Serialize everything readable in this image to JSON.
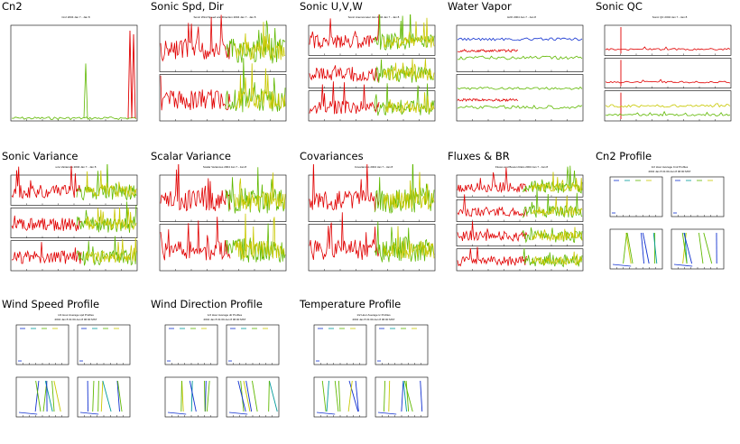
{
  "colors": {
    "red": "#e00000",
    "green": "#5fb800",
    "yellow": "#c8c800",
    "orange": "#f08000",
    "blue": "#1030d0",
    "teal": "#009a9a",
    "grid": "#000000"
  },
  "plots": [
    {
      "id": "cn2",
      "title": "Cn2",
      "kind": "timeseries-single",
      "header": "Cn2 2004 Jan 7 - Jan 8",
      "icon": "cn2-plot-icon"
    },
    {
      "id": "sonic-spd-dir",
      "title": "Sonic Spd, Dir",
      "kind": "timeseries-double",
      "header": "Sonic Wind Speed and Direction 2004 Jan 7 - Jan 8",
      "icon": "sonic-spd-dir-plot-icon"
    },
    {
      "id": "sonic-uvw",
      "title": "Sonic U,V,W",
      "kind": "timeseries-triple",
      "header": "Sonic Anemometer Jan 2004 Jan 7 - Jan 8",
      "icon": "sonic-uvw-plot-icon"
    },
    {
      "id": "water-vapor",
      "title": "Water Vapor",
      "kind": "timeseries-double",
      "header": "H2O 2004 Jan 7 - Jan 8",
      "icon": "water-vapor-plot-icon"
    },
    {
      "id": "sonic-qc",
      "title": "Sonic QC",
      "kind": "timeseries-triple",
      "header": "Sonic QC 2004 Jan 7 - Jan 8",
      "icon": "sonic-qc-plot-icon"
    },
    {
      "id": "sonic-variance",
      "title": "Sonic Variance",
      "kind": "timeseries-triple",
      "header": "uvw Variances 2004 Jan 7 - Jan 8",
      "icon": "sonic-variance-plot-icon"
    },
    {
      "id": "scalar-variance",
      "title": "Scalar Variance",
      "kind": "timeseries-double",
      "header": "Scalar Variances 2004 Jan 7 - Jan 8",
      "icon": "scalar-variance-plot-icon"
    },
    {
      "id": "covariances",
      "title": "Covariances",
      "kind": "timeseries-double",
      "header": "Covariances 2004 Jan 7 - Jan 8",
      "icon": "covariances-plot-icon"
    },
    {
      "id": "fluxes-br",
      "title": "Fluxes & BR",
      "kind": "timeseries-quad",
      "header": "Fluxes and Bowen Ratio 2004 Jan 7 - Jan 8",
      "icon": "fluxes-br-plot-icon"
    },
    {
      "id": "cn2-profile",
      "title": "Cn2 Profile",
      "kind": "profile",
      "header": "1/2 Hour Average Cn2 Profiles",
      "subheader": "2004 Jan 8 01:00-Jan 8 06:00 MST",
      "icon": "cn2-profile-plot-icon"
    },
    {
      "id": "wind-speed-profile",
      "title": "Wind Speed Profile",
      "kind": "profile",
      "header": "1/2 Hour Average spd Profiles",
      "subheader": "2004 Jan 8 01:00-Jan 8 06:00 MST",
      "icon": "wind-speed-profile-plot-icon"
    },
    {
      "id": "wind-direction-profile",
      "title": "Wind Direction Profile",
      "kind": "profile",
      "header": "1/2 Hour Average dir Profiles",
      "subheader": "2004 Jan 8 01:00-Jan 8 06:00 MST",
      "icon": "wind-direction-profile-plot-icon"
    },
    {
      "id": "temperature-profile",
      "title": "Temperature Profile",
      "kind": "profile",
      "header": "1/2 Hour Average tc Profiles",
      "subheader": "2004 Jan 8 01:00-Jan 8 06:00 MST",
      "icon": "temperature-profile-plot-icon"
    }
  ],
  "chart_data": [
    {
      "type": "line",
      "title": "Cn2",
      "x": "time 2004 Jan 7 - Jan 8",
      "series": []
    },
    {
      "type": "line",
      "title": "Sonic Spd, Dir",
      "series": []
    },
    {
      "type": "line",
      "title": "Sonic U,V,W",
      "series": []
    },
    {
      "type": "line",
      "title": "Water Vapor",
      "series": []
    },
    {
      "type": "line",
      "title": "Sonic QC",
      "series": []
    },
    {
      "type": "line",
      "title": "Sonic Variance",
      "series": []
    },
    {
      "type": "line",
      "title": "Scalar Variance",
      "series": []
    },
    {
      "type": "line",
      "title": "Covariances",
      "series": []
    },
    {
      "type": "line",
      "title": "Fluxes & BR",
      "series": []
    },
    {
      "type": "line",
      "title": "Cn2 Profile",
      "series": []
    },
    {
      "type": "line",
      "title": "Wind Speed Profile",
      "series": []
    },
    {
      "type": "line",
      "title": "Wind Direction Profile",
      "series": []
    },
    {
      "type": "line",
      "title": "Temperature Profile",
      "series": []
    }
  ]
}
